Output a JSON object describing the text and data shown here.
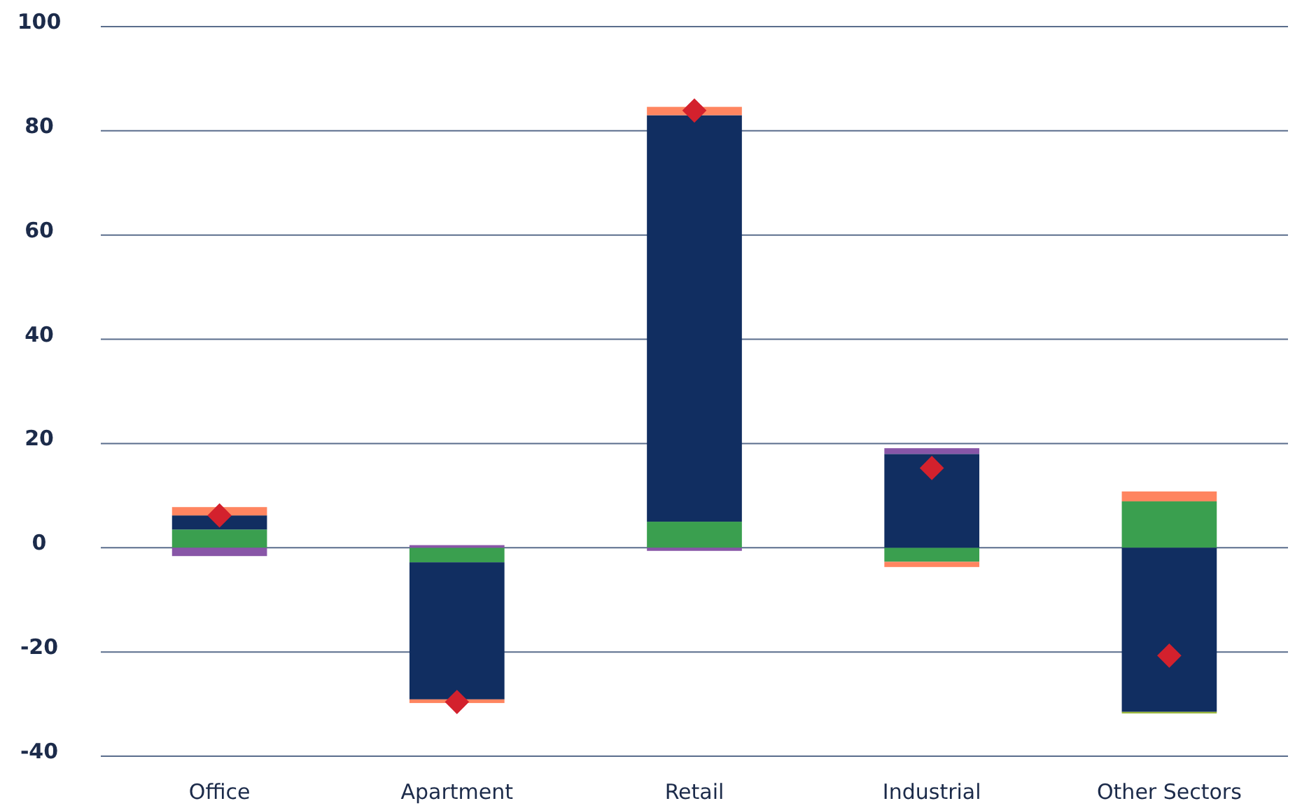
{
  "chart_data": {
    "type": "bar",
    "stacked": true,
    "categories": [
      "Office",
      "Apartment",
      "Retail",
      "Industrial",
      "Other Sectors"
    ],
    "series": [
      {
        "color": "#3a9f4f",
        "values": [
          3.5,
          -2.8,
          5,
          -2.7,
          8.9
        ]
      },
      {
        "color": "#112e61",
        "values": [
          2.7,
          -26.3,
          78,
          18,
          -31.5
        ]
      },
      {
        "color": "#ff8560",
        "values": [
          1.6,
          -0.7,
          1.6,
          -1,
          1.9
        ]
      },
      {
        "color": "#8856a7",
        "values": [
          -1.6,
          0.5,
          -0.6,
          1.1,
          null
        ]
      },
      {
        "color": "#9ab83a",
        "values": [
          null,
          null,
          null,
          null,
          -0.3
        ]
      },
      {
        "type": "scatter",
        "marker": "diamond",
        "color": "#d3212d",
        "values": [
          6.2,
          -29.6,
          83.9,
          15.3,
          -20.7
        ]
      }
    ],
    "ylim": [
      -40,
      100
    ],
    "yticks": [
      -40,
      -20,
      0,
      20,
      40,
      60,
      80,
      100
    ],
    "grid": "y"
  }
}
